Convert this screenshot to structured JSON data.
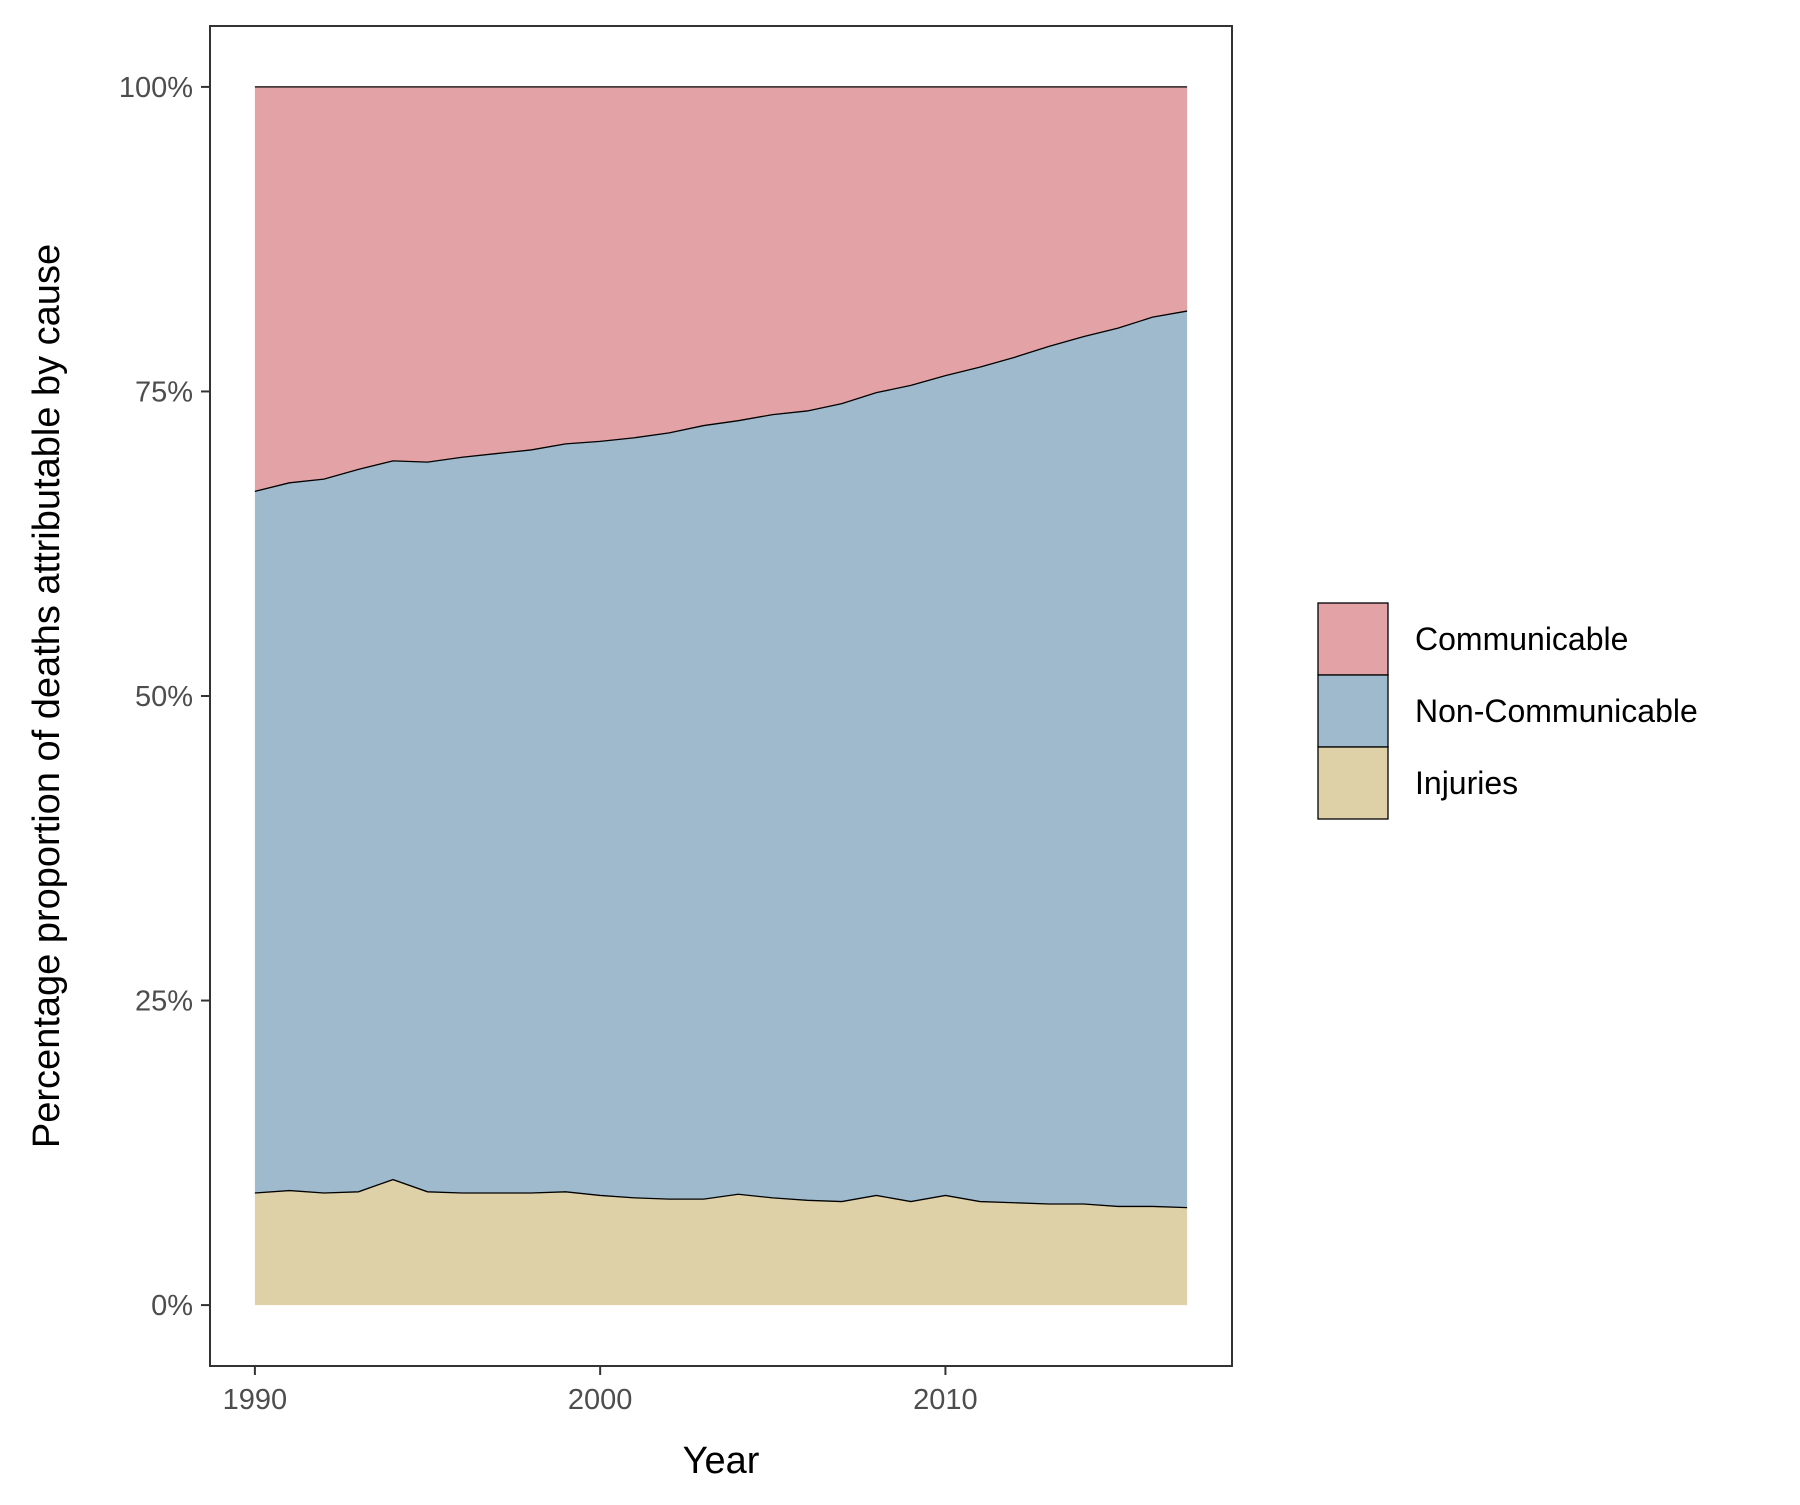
{
  "chart_data": {
    "type": "area",
    "stacked": true,
    "percent": true,
    "title": "",
    "xlabel": "Year",
    "ylabel": "Percentage proportion of deaths attributable by cause",
    "xlim": [
      1988.7,
      2018.3
    ],
    "ylim": [
      -5,
      105
    ],
    "x_ticks": [
      {
        "value": 1990,
        "label": "1990"
      },
      {
        "value": 2000,
        "label": "2000"
      },
      {
        "value": 2010,
        "label": "2010"
      }
    ],
    "y_ticks": [
      {
        "value": 0,
        "label": "0%"
      },
      {
        "value": 25,
        "label": "25%"
      },
      {
        "value": 50,
        "label": "50%"
      },
      {
        "value": 75,
        "label": "75%"
      },
      {
        "value": 100,
        "label": "100%"
      }
    ],
    "grid": false,
    "legend_position": "right",
    "x": [
      1990,
      1991,
      1992,
      1993,
      1994,
      1995,
      1996,
      1997,
      1998,
      1999,
      2000,
      2001,
      2002,
      2003,
      2004,
      2005,
      2006,
      2007,
      2008,
      2009,
      2010,
      2011,
      2012,
      2013,
      2014,
      2015,
      2016,
      2017
    ],
    "series": [
      {
        "name": "Injuries",
        "color": "#ded1a8",
        "values": [
          9.2,
          9.4,
          9.2,
          9.3,
          10.3,
          9.3,
          9.2,
          9.2,
          9.2,
          9.3,
          9.0,
          8.8,
          8.7,
          8.7,
          9.1,
          8.8,
          8.6,
          8.5,
          9.0,
          8.5,
          9.0,
          8.5,
          8.4,
          8.3,
          8.3,
          8.1,
          8.1,
          8.0
        ]
      },
      {
        "name": "Non-Communicable",
        "color": "#9fbacc",
        "values": [
          57.6,
          58.1,
          58.6,
          59.3,
          59.0,
          59.9,
          60.4,
          60.7,
          61.0,
          61.4,
          61.9,
          62.4,
          62.9,
          63.5,
          63.5,
          64.3,
          64.8,
          65.5,
          65.9,
          67.0,
          67.3,
          68.5,
          69.4,
          70.4,
          71.2,
          72.1,
          73.0,
          73.6
        ]
      },
      {
        "name": "Communicable",
        "color": "#e2a2a6",
        "values": [
          33.2,
          32.5,
          32.2,
          31.4,
          30.7,
          30.8,
          30.4,
          30.1,
          29.8,
          29.3,
          29.1,
          28.8,
          28.4,
          27.8,
          27.4,
          26.9,
          26.6,
          26.0,
          25.1,
          24.5,
          23.7,
          23.0,
          22.2,
          21.3,
          20.5,
          19.8,
          18.9,
          18.4
        ]
      }
    ],
    "legend": [
      {
        "name": "Communicable",
        "color": "#e2a2a6"
      },
      {
        "name": "Non-Communicable",
        "color": "#9fbacc"
      },
      {
        "name": "Injuries",
        "color": "#ded1a8"
      }
    ]
  }
}
